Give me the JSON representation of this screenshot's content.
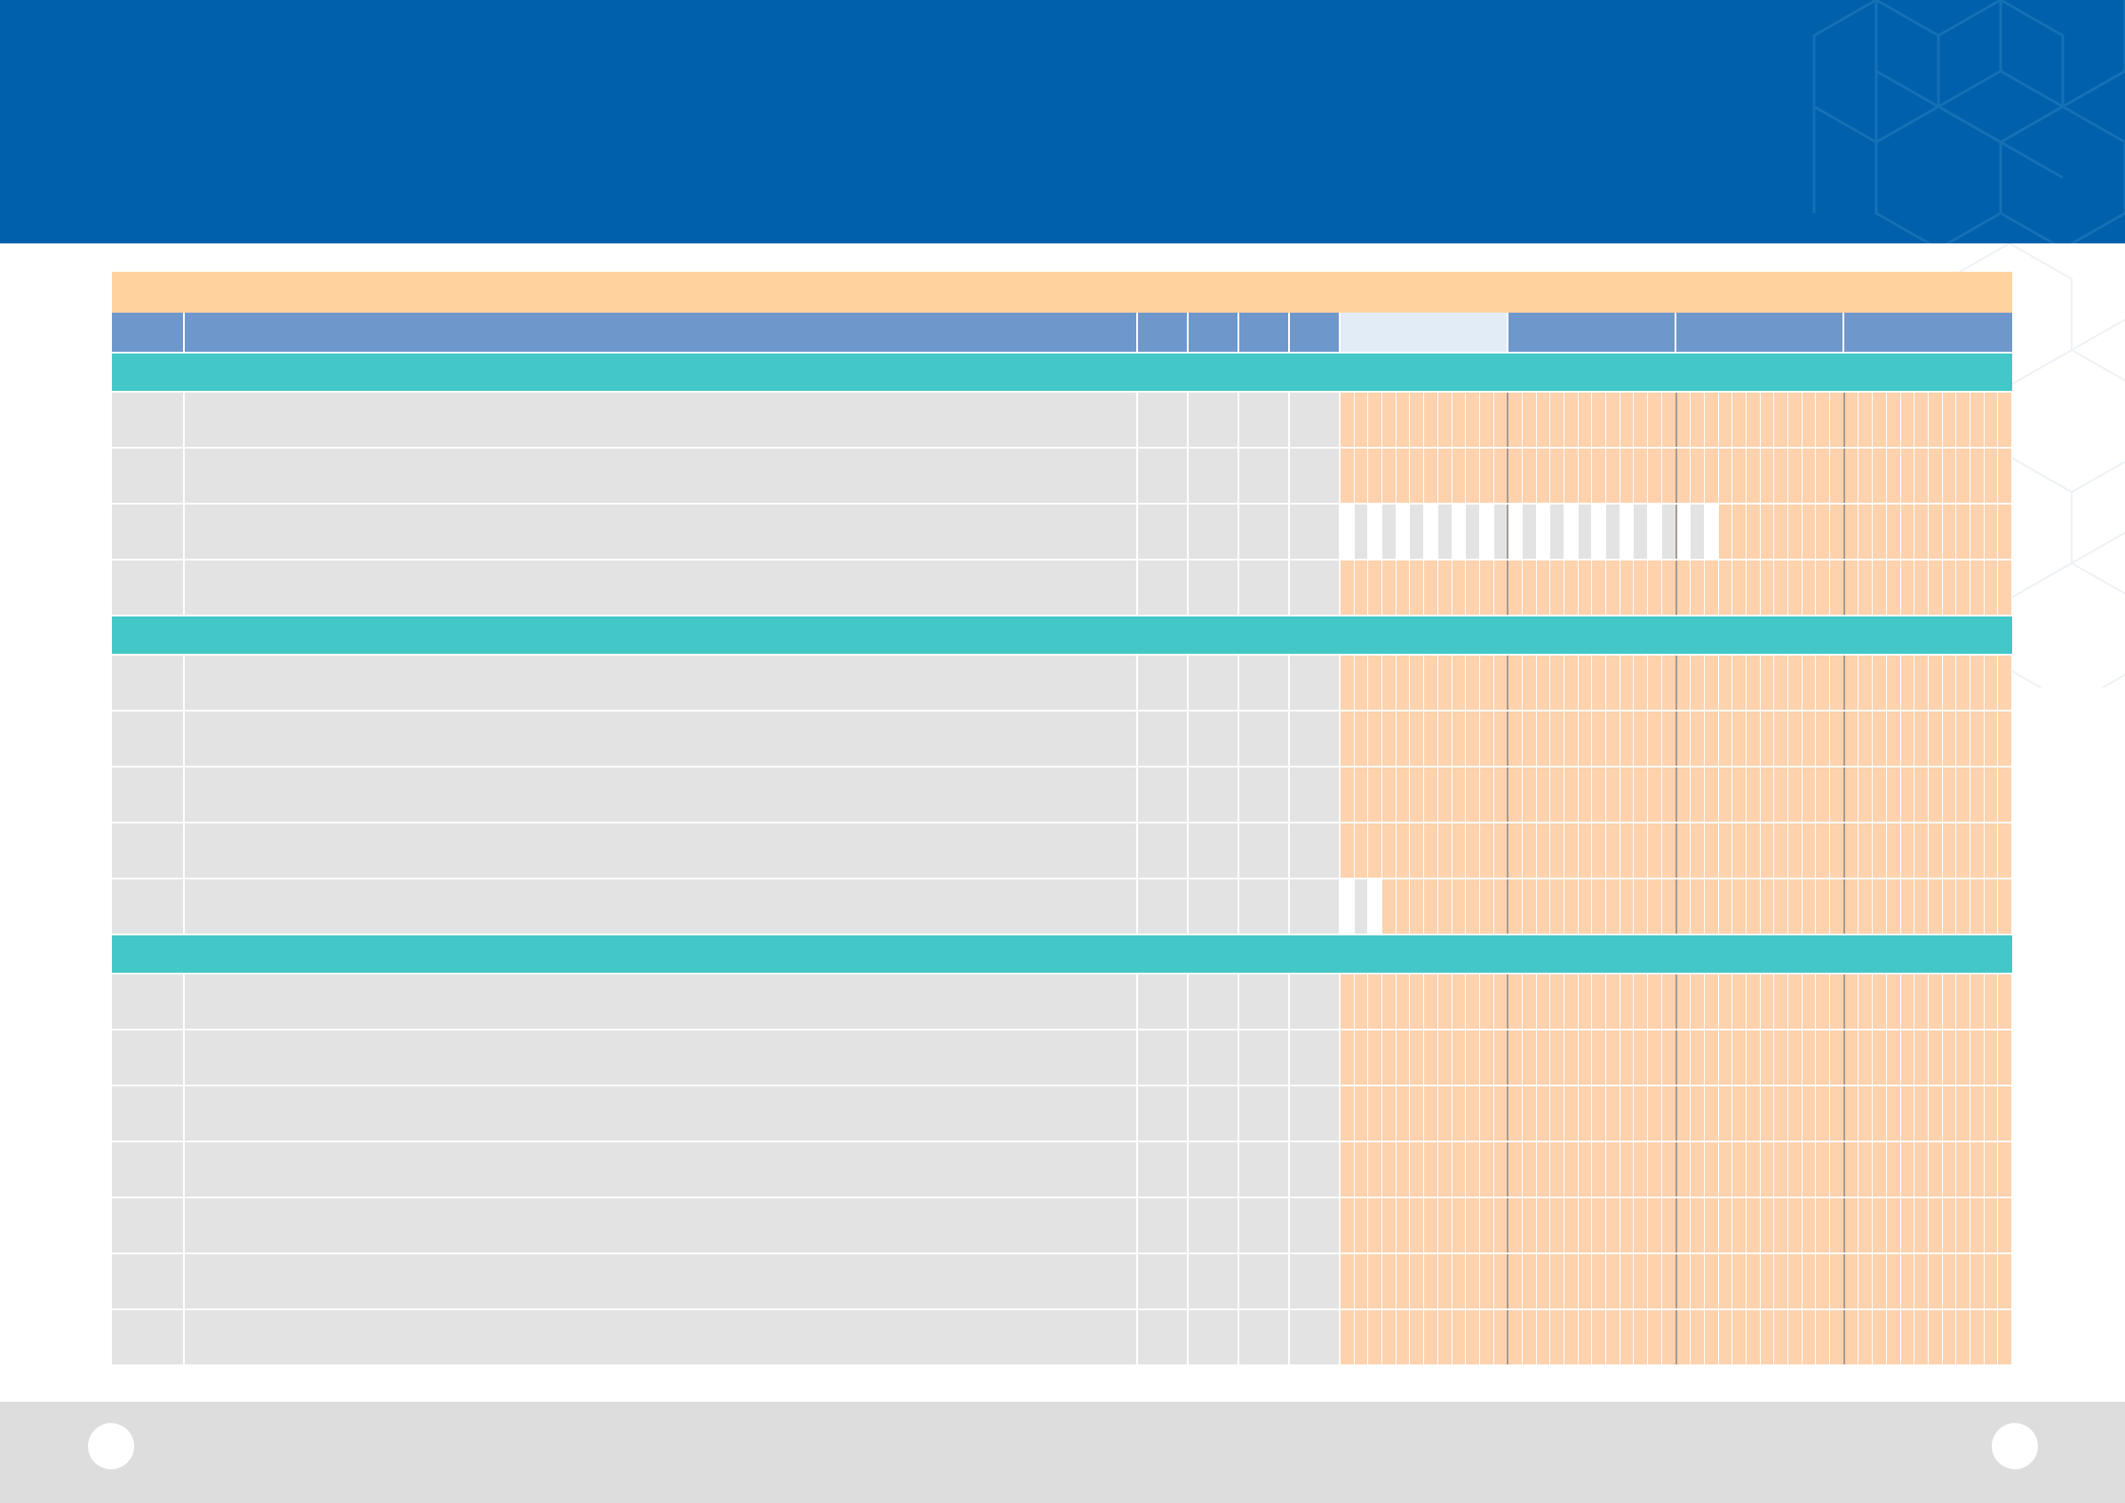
{
  "banner": {
    "color": "#0060ac",
    "title": ""
  },
  "grid_title": "",
  "columns": {
    "id": "",
    "task": "",
    "meta": [
      "",
      "",
      "",
      ""
    ],
    "quarters": [
      "",
      "",
      "",
      ""
    ]
  },
  "timeline": {
    "periods_per_quarter": 12
  },
  "colors": {
    "banner": "#0060ac",
    "title_bar": "#ffd29e",
    "header": "#6e98cc",
    "header_active": "#e2ecf7",
    "section": "#44c7c7",
    "row": "#e3e3e3",
    "timeline_cell": "#fdd2ad",
    "footer": "#dddddd"
  },
  "sections": [
    {
      "label": "",
      "tasks": [
        {
          "id": "",
          "name": "",
          "meta": [
            "",
            "",
            "",
            ""
          ],
          "done_periods": 0
        },
        {
          "id": "",
          "name": "",
          "meta": [
            "",
            "",
            "",
            ""
          ],
          "done_periods": 0
        },
        {
          "id": "",
          "name": "",
          "meta": [
            "",
            "",
            "",
            ""
          ],
          "done_periods": 27
        },
        {
          "id": "",
          "name": "",
          "meta": [
            "",
            "",
            "",
            ""
          ],
          "done_periods": 0
        }
      ]
    },
    {
      "label": "",
      "tasks": [
        {
          "id": "",
          "name": "",
          "meta": [
            "",
            "",
            "",
            ""
          ],
          "done_periods": 0
        },
        {
          "id": "",
          "name": "",
          "meta": [
            "",
            "",
            "",
            ""
          ],
          "done_periods": 0
        },
        {
          "id": "",
          "name": "",
          "meta": [
            "",
            "",
            "",
            ""
          ],
          "done_periods": 0
        },
        {
          "id": "",
          "name": "",
          "meta": [
            "",
            "",
            "",
            ""
          ],
          "done_periods": 0
        },
        {
          "id": "",
          "name": "",
          "meta": [
            "",
            "",
            "",
            ""
          ],
          "done_periods": 3
        }
      ]
    },
    {
      "label": "",
      "tasks": [
        {
          "id": "",
          "name": "",
          "meta": [
            "",
            "",
            "",
            ""
          ],
          "done_periods": 0
        },
        {
          "id": "",
          "name": "",
          "meta": [
            "",
            "",
            "",
            ""
          ],
          "done_periods": 0
        },
        {
          "id": "",
          "name": "",
          "meta": [
            "",
            "",
            "",
            ""
          ],
          "done_periods": 0
        },
        {
          "id": "",
          "name": "",
          "meta": [
            "",
            "",
            "",
            ""
          ],
          "done_periods": 0
        },
        {
          "id": "",
          "name": "",
          "meta": [
            "",
            "",
            "",
            ""
          ],
          "done_periods": 0
        },
        {
          "id": "",
          "name": "",
          "meta": [
            "",
            "",
            "",
            ""
          ],
          "done_periods": 0
        },
        {
          "id": "",
          "name": "",
          "meta": [
            "",
            "",
            "",
            ""
          ],
          "done_periods": 0
        }
      ]
    }
  ],
  "footer": {
    "page_left": "",
    "page_right": ""
  }
}
